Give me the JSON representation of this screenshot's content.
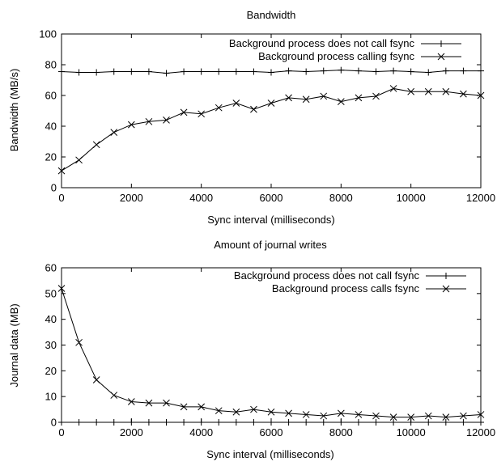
{
  "chart_data": [
    {
      "type": "line",
      "title": "Bandwidth",
      "xlabel": "Sync interval (milliseconds)",
      "ylabel": "Bandwidth (MB/s)",
      "xlim": [
        0,
        12000
      ],
      "ylim": [
        0,
        100
      ],
      "xticks": [
        "0",
        "2000",
        "4000",
        "6000",
        "8000",
        "10000",
        "12000"
      ],
      "yticks": [
        "0",
        "20",
        "40",
        "60",
        "80",
        "100"
      ],
      "grid": false,
      "legend": "top-right",
      "x": [
        0,
        500,
        1000,
        1500,
        2000,
        2500,
        3000,
        3500,
        4000,
        4500,
        5000,
        5500,
        6000,
        6500,
        7000,
        7500,
        8000,
        8500,
        9000,
        9500,
        10000,
        10500,
        11000,
        11500,
        12000
      ],
      "series": [
        {
          "name": "Background process does not call fsync",
          "marker": "plus",
          "values": [
            75.5,
            75,
            75,
            75.5,
            75.5,
            75.5,
            74.5,
            75.5,
            75.5,
            75.5,
            75.5,
            75.5,
            75,
            76,
            75.5,
            76,
            76.5,
            76,
            75.5,
            76,
            75.5,
            75,
            76,
            76,
            76
          ]
        },
        {
          "name": "Background process calling fsync",
          "marker": "x",
          "values": [
            11,
            18,
            28,
            36,
            41,
            43,
            44,
            49,
            48,
            52,
            55,
            51,
            55,
            58.5,
            57.5,
            59.5,
            56,
            58.5,
            59.5,
            64.5,
            62.5,
            62.5,
            62.5,
            61,
            60
          ]
        }
      ]
    },
    {
      "type": "line",
      "title": "Amount of journal writes",
      "xlabel": "Sync interval (milliseconds)",
      "ylabel": "Journal data (MB)",
      "xlim": [
        0,
        12000
      ],
      "ylim": [
        0,
        60
      ],
      "xticks": [
        "0",
        "2000",
        "4000",
        "6000",
        "8000",
        "10000",
        "12000"
      ],
      "yticks": [
        "0",
        "10",
        "20",
        "30",
        "40",
        "50",
        "60"
      ],
      "grid": false,
      "legend": "top-right",
      "x": [
        0,
        500,
        1000,
        1500,
        2000,
        2500,
        3000,
        3500,
        4000,
        4500,
        5000,
        5500,
        6000,
        6500,
        7000,
        7500,
        8000,
        8500,
        9000,
        9500,
        10000,
        10500,
        11000,
        11500,
        12000
      ],
      "series": [
        {
          "name": "Background process does not call fsync",
          "marker": "plus",
          "values": [
            0,
            0,
            0,
            0,
            0,
            0,
            0,
            0,
            0,
            0,
            0,
            0,
            0,
            0,
            0,
            0,
            0,
            0,
            0,
            0,
            0,
            0,
            0,
            0,
            0
          ]
        },
        {
          "name": "Background process calls fsync",
          "marker": "x",
          "values": [
            52,
            31,
            16.5,
            10.5,
            8,
            7.5,
            7.5,
            6,
            6,
            4.5,
            4,
            5,
            4,
            3.5,
            3,
            2.5,
            3.5,
            3,
            2.5,
            2,
            2,
            2.5,
            2,
            2.5,
            3
          ]
        }
      ]
    }
  ]
}
